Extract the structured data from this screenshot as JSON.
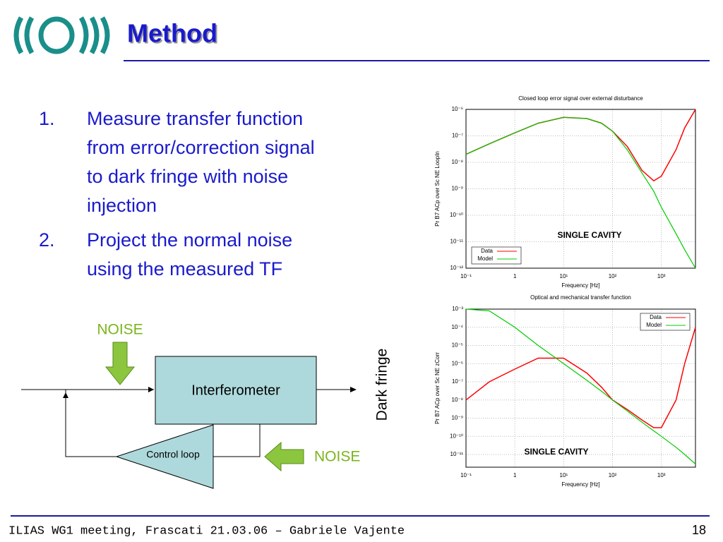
{
  "header": {
    "title": "Method"
  },
  "list": [
    {
      "number": "1.",
      "lines": [
        "Measure transfer function",
        "from error/correction signal",
        "to dark fringe with noise",
        "injection"
      ]
    },
    {
      "number": "2.",
      "lines": [
        "Project the normal noise",
        "using the measured TF"
      ]
    }
  ],
  "diagram": {
    "noise_top": "NOISE",
    "block": "Interferometer",
    "control": "Control loop",
    "noise_right": "NOISE",
    "output": "Dark fringe"
  },
  "chart_data": [
    {
      "type": "line",
      "title": "Closed loop error signal over external disturbance",
      "x_label": "Frequency [Hz]",
      "y_label": "Pr B7 ACp over Sc NE LoopIn",
      "annotation": "SINGLE CAVITY",
      "log_x": true,
      "log_y": true,
      "grid": true,
      "legend": "lower left",
      "x": [
        0.1,
        0.3,
        1,
        3,
        10,
        30,
        60,
        100,
        200,
        400,
        700,
        1000,
        2000,
        3000,
        5000
      ],
      "series": [
        {
          "name": "Data",
          "color": "#ff0000",
          "values": [
            2e-08,
            5e-08,
            1.3e-07,
            3e-07,
            5e-07,
            4.5e-07,
            3e-07,
            1.5e-07,
            4e-08,
            5e-09,
            2e-09,
            3e-09,
            3e-08,
            2e-07,
            1e-06
          ]
        },
        {
          "name": "Model",
          "color": "#00cc00",
          "values": [
            2e-08,
            5e-08,
            1.3e-07,
            3e-07,
            5e-07,
            4.5e-07,
            3e-07,
            1.5e-07,
            3e-08,
            4e-09,
            8e-10,
            2e-10,
            2e-11,
            5e-12,
            1e-12
          ]
        }
      ],
      "xlim": [
        0.1,
        5000
      ],
      "ylim": [
        1e-12,
        1e-06
      ],
      "xticks": [
        {
          "value": 0.1,
          "label": "10⁻¹"
        },
        1,
        {
          "value": 10,
          "label": "10¹"
        },
        {
          "value": 100,
          "label": "10²"
        },
        {
          "value": 1000,
          "label": "10³"
        }
      ],
      "yticks": [
        {
          "value": 1e-12,
          "label": "10⁻¹²"
        },
        {
          "value": 1e-11,
          "label": "10⁻¹¹"
        },
        {
          "value": 1e-10,
          "label": "10⁻¹⁰"
        },
        {
          "value": 1e-09,
          "label": "10⁻⁹"
        },
        {
          "value": 1e-08,
          "label": "10⁻⁸"
        },
        {
          "value": 1e-07,
          "label": "10⁻⁷"
        },
        {
          "value": 1e-06,
          "label": "10⁻⁶"
        }
      ]
    },
    {
      "type": "line",
      "title": "Optical and mechanical transfer function",
      "x_label": "Frequency [Hz]",
      "y_label": "Pr B7 ACp over Sc NE zCorr",
      "annotation": "SINGLE CAVITY",
      "log_x": true,
      "log_y": true,
      "grid": true,
      "legend": "upper right",
      "x": [
        0.1,
        0.3,
        1,
        3,
        10,
        30,
        60,
        100,
        200,
        400,
        700,
        1000,
        2000,
        3000,
        5000
      ],
      "series": [
        {
          "name": "Data",
          "color": "#ff0000",
          "values": [
            1e-08,
            1e-07,
            5e-07,
            2e-06,
            2e-06,
            3e-07,
            5e-08,
            1e-08,
            3e-09,
            8e-10,
            3e-10,
            3e-10,
            1e-08,
            1e-06,
            0.0001
          ]
        },
        {
          "name": "Model",
          "color": "#00cc00",
          "values": [
            0.001,
            0.0008,
            0.0001,
            1e-05,
            1e-06,
            1.2e-07,
            3e-08,
            1e-08,
            2.5e-09,
            6e-10,
            2e-10,
            1e-10,
            2.5e-11,
            1e-11,
            3e-12
          ]
        }
      ],
      "xlim": [
        0.1,
        5000
      ],
      "ylim": [
        2e-12,
        0.001
      ],
      "xticks": [
        {
          "value": 0.1,
          "label": "10⁻¹"
        },
        1,
        {
          "value": 10,
          "label": "10¹"
        },
        {
          "value": 100,
          "label": "10²"
        },
        {
          "value": 1000,
          "label": "10³"
        }
      ],
      "yticks": [
        {
          "value": 1e-11,
          "label": "10⁻¹¹"
        },
        {
          "value": 1e-10,
          "label": "10⁻¹⁰"
        },
        {
          "value": 1e-09,
          "label": "10⁻⁹"
        },
        {
          "value": 1e-08,
          "label": "10⁻⁸"
        },
        {
          "value": 1e-07,
          "label": "10⁻⁷"
        },
        {
          "value": 1e-06,
          "label": "10⁻⁶"
        },
        {
          "value": 1e-05,
          "label": "10⁻⁵"
        },
        {
          "value": 0.0001,
          "label": "10⁻⁴"
        },
        {
          "value": 0.001,
          "label": "10⁻³"
        }
      ]
    }
  ],
  "footer": {
    "text": "ILIAS WG1 meeting, Frascati 21.03.06 – Gabriele Vajente",
    "page": "18"
  }
}
